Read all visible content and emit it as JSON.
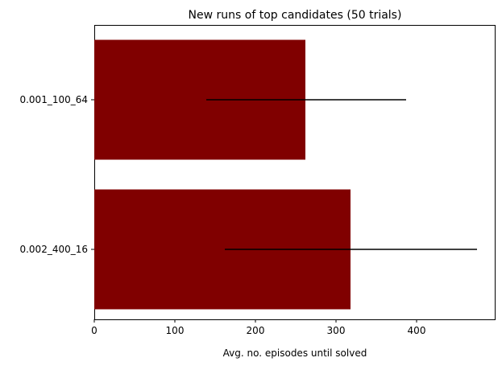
{
  "chart_data": {
    "type": "bar",
    "orientation": "horizontal",
    "title": "New runs of top candidates (50 trials)",
    "xlabel": "Avg. no. episodes until solved",
    "ylabel": "",
    "categories": [
      "0.001_100_64",
      "0.002_400_16"
    ],
    "values": [
      262,
      318
    ],
    "error_low": [
      139,
      162
    ],
    "error_high": [
      387,
      475
    ],
    "xlim": [
      0,
      497
    ],
    "xticks": [
      0,
      100,
      200,
      300,
      400
    ],
    "grid": false,
    "bar_color": "#800000",
    "errorbar_color": "#000000"
  }
}
